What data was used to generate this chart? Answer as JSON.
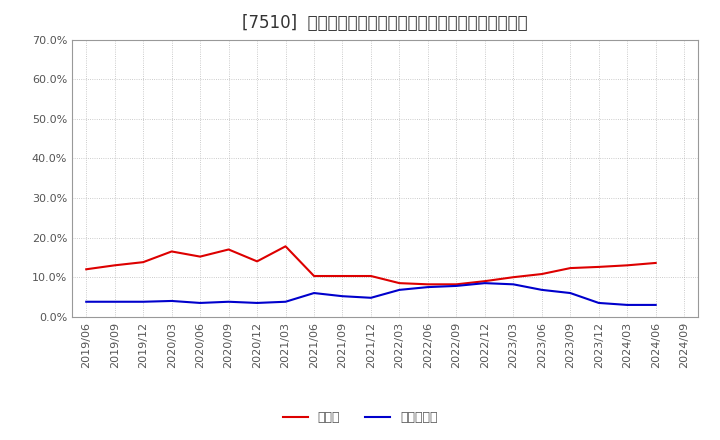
{
  "title": "[7510]  現預金、有利子負債の総資産に対する比率の推移",
  "x_labels": [
    "2019/06",
    "2019/09",
    "2019/12",
    "2020/03",
    "2020/06",
    "2020/09",
    "2020/12",
    "2021/03",
    "2021/06",
    "2021/09",
    "2021/12",
    "2022/03",
    "2022/06",
    "2022/09",
    "2022/12",
    "2023/03",
    "2023/06",
    "2023/09",
    "2023/12",
    "2024/03",
    "2024/06",
    "2024/09"
  ],
  "cash_values": [
    0.12,
    0.13,
    0.138,
    0.165,
    0.152,
    0.17,
    0.14,
    0.178,
    0.103,
    0.103,
    0.103,
    0.085,
    0.082,
    0.082,
    0.09,
    0.1,
    0.108,
    0.123,
    0.126,
    0.13,
    0.136,
    null
  ],
  "debt_values": [
    0.038,
    0.038,
    0.038,
    0.04,
    0.035,
    0.038,
    0.035,
    0.038,
    0.06,
    0.052,
    0.048,
    0.068,
    0.075,
    0.078,
    0.085,
    0.082,
    0.068,
    0.06,
    0.035,
    0.03,
    0.03,
    null
  ],
  "cash_color": "#dd0000",
  "debt_color": "#0000cc",
  "bg_color": "#ffffff",
  "plot_bg_color": "#ffffff",
  "grid_color": "#aaaaaa",
  "ylim": [
    0.0,
    0.7
  ],
  "yticks": [
    0.0,
    0.1,
    0.2,
    0.3,
    0.4,
    0.5,
    0.6,
    0.7
  ],
  "legend_cash": "現預金",
  "legend_debt": "有利子負債",
  "title_fontsize": 12,
  "legend_fontsize": 9,
  "tick_fontsize": 8
}
